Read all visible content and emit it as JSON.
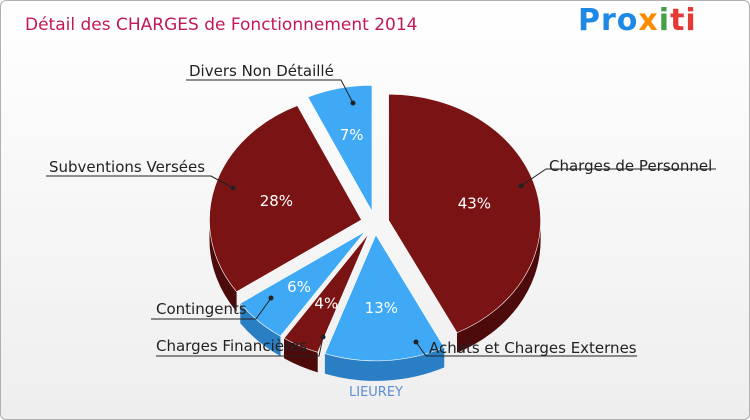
{
  "header": {
    "title": "Détail des CHARGES de Fonctionnement 2014",
    "logo": {
      "p1": "Pro",
      "p2": "x",
      "p3": "i",
      "p4": "ti"
    }
  },
  "footer": {
    "commune": "LIEUREY"
  },
  "colors": {
    "dark_red": "#7a1414",
    "light_blue": "#3fa9f5",
    "title": "#c2185b"
  },
  "chart_data": {
    "type": "pie",
    "title": "Détail des CHARGES de Fonctionnement 2014",
    "slices": [
      {
        "label": "Charges de Personnel",
        "value": 43,
        "display": "43%",
        "color": "dark"
      },
      {
        "label": "Achats et Charges Externes",
        "value": 13,
        "display": "13%",
        "color": "light"
      },
      {
        "label": "Charges Financières",
        "value": 4,
        "display": "4%",
        "color": "dark"
      },
      {
        "label": "Contingents",
        "value": 6,
        "display": "6%",
        "color": "light"
      },
      {
        "label": "Subventions Versées",
        "value": 28,
        "display": "28%",
        "color": "dark"
      },
      {
        "label": "Divers Non Détaillé",
        "value": 7,
        "display": "7%",
        "color": "light"
      }
    ]
  }
}
